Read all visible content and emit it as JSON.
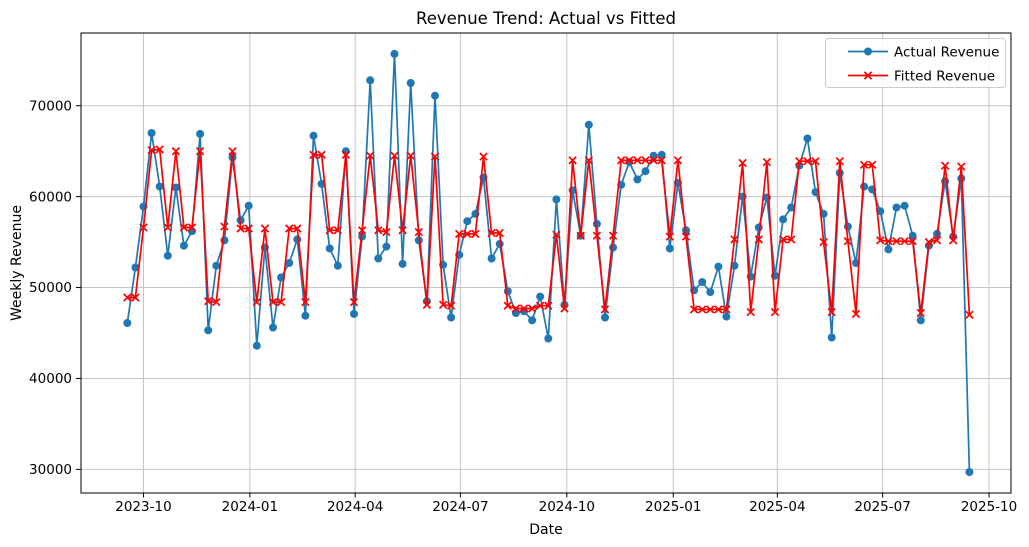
{
  "chart_data": {
    "type": "line",
    "title": "Revenue Trend: Actual vs Fitted",
    "xlabel": "Date",
    "ylabel": "Weekly Revenue",
    "grid": true,
    "legend_position": "upper right",
    "background": "#ffffff",
    "grid_color": "#c6c6c6",
    "spine_color": "#000000",
    "ylim": [
      27400,
      78000
    ],
    "xlim": [
      "2023-08-08",
      "2025-10-20"
    ],
    "y_ticks": [
      30000,
      40000,
      50000,
      60000,
      70000
    ],
    "x_ticks": [
      {
        "date": "2023-10-01",
        "label": "2023-10"
      },
      {
        "date": "2024-01-01",
        "label": "2024-01"
      },
      {
        "date": "2024-04-01",
        "label": "2024-04"
      },
      {
        "date": "2024-07-01",
        "label": "2024-07"
      },
      {
        "date": "2024-10-01",
        "label": "2024-10"
      },
      {
        "date": "2025-01-01",
        "label": "2025-01"
      },
      {
        "date": "2025-04-01",
        "label": "2025-04"
      },
      {
        "date": "2025-07-01",
        "label": "2025-07"
      },
      {
        "date": "2025-10-01",
        "label": "2025-10"
      }
    ],
    "x": [
      "2023-09-17",
      "2023-09-24",
      "2023-10-01",
      "2023-10-08",
      "2023-10-15",
      "2023-10-22",
      "2023-10-29",
      "2023-11-05",
      "2023-11-12",
      "2023-11-19",
      "2023-11-26",
      "2023-12-03",
      "2023-12-10",
      "2023-12-17",
      "2023-12-24",
      "2023-12-31",
      "2024-01-07",
      "2024-01-14",
      "2024-01-21",
      "2024-01-28",
      "2024-02-04",
      "2024-02-11",
      "2024-02-18",
      "2024-02-25",
      "2024-03-03",
      "2024-03-10",
      "2024-03-17",
      "2024-03-24",
      "2024-03-31",
      "2024-04-07",
      "2024-04-14",
      "2024-04-21",
      "2024-04-28",
      "2024-05-05",
      "2024-05-12",
      "2024-05-19",
      "2024-05-26",
      "2024-06-02",
      "2024-06-09",
      "2024-06-16",
      "2024-06-23",
      "2024-06-30",
      "2024-07-07",
      "2024-07-14",
      "2024-07-21",
      "2024-07-28",
      "2024-08-04",
      "2024-08-11",
      "2024-08-18",
      "2024-08-25",
      "2024-09-01",
      "2024-09-08",
      "2024-09-15",
      "2024-09-22",
      "2024-09-29",
      "2024-10-06",
      "2024-10-13",
      "2024-10-20",
      "2024-10-27",
      "2024-11-03",
      "2024-11-10",
      "2024-11-17",
      "2024-11-24",
      "2024-12-01",
      "2024-12-08",
      "2024-12-15",
      "2024-12-22",
      "2024-12-29",
      "2025-01-05",
      "2025-01-12",
      "2025-01-19",
      "2025-01-26",
      "2025-02-02",
      "2025-02-09",
      "2025-02-16",
      "2025-02-23",
      "2025-03-02",
      "2025-03-09",
      "2025-03-16",
      "2025-03-23",
      "2025-03-30",
      "2025-04-06",
      "2025-04-13",
      "2025-04-20",
      "2025-04-27",
      "2025-05-04",
      "2025-05-11",
      "2025-05-18",
      "2025-05-25",
      "2025-06-01",
      "2025-06-08",
      "2025-06-15",
      "2025-06-22",
      "2025-06-29",
      "2025-07-06",
      "2025-07-13",
      "2025-07-20",
      "2025-07-27",
      "2025-08-03",
      "2025-08-10",
      "2025-08-17",
      "2025-08-24",
      "2025-08-31",
      "2025-09-07",
      "2025-09-14"
    ],
    "series": [
      {
        "name": "Actual Revenue",
        "color": "#1f77b4",
        "marker": "circle",
        "values": [
          46100,
          52200,
          58900,
          67000,
          61100,
          53500,
          61000,
          54600,
          56200,
          66900,
          45300,
          52400,
          55200,
          64300,
          57400,
          59000,
          43600,
          54400,
          45600,
          51100,
          52700,
          55300,
          46900,
          66700,
          61400,
          54300,
          52400,
          65000,
          47100,
          55600,
          72800,
          53200,
          54500,
          75700,
          52600,
          72500,
          55200,
          48500,
          71100,
          52500,
          46700,
          53600,
          57300,
          58100,
          62100,
          53200,
          54800,
          49600,
          47200,
          47400,
          46400,
          49000,
          44400,
          59700,
          48100,
          60700,
          55700,
          67900,
          57000,
          46700,
          54400,
          61300,
          63800,
          61900,
          62800,
          64500,
          64600,
          54300,
          61500,
          56300,
          49700,
          50600,
          49500,
          52300,
          46800,
          52400,
          60000,
          51200,
          56600,
          59900,
          51300,
          57500,
          58800,
          63400,
          66400,
          60500,
          58100,
          44500,
          62600,
          56700,
          52700,
          61100,
          60800,
          58400,
          54200,
          58800,
          59000,
          55700,
          46400,
          54600,
          55900,
          61700,
          55600,
          62000,
          29700
        ]
      },
      {
        "name": "Fitted Revenue",
        "color": "#ff0000",
        "marker": "x",
        "values": [
          48900,
          48900,
          56600,
          65100,
          65200,
          56600,
          65000,
          56600,
          56600,
          65000,
          48500,
          48400,
          56700,
          65000,
          56500,
          56500,
          48400,
          56500,
          48400,
          48400,
          56500,
          56500,
          48400,
          64600,
          64600,
          56300,
          56300,
          64600,
          48400,
          56300,
          64500,
          56300,
          56100,
          64500,
          56300,
          64500,
          56100,
          48100,
          64400,
          48100,
          48000,
          55900,
          55900,
          55900,
          64400,
          56000,
          56000,
          48000,
          47700,
          47700,
          47700,
          48000,
          48000,
          55800,
          47700,
          64000,
          55700,
          64000,
          55700,
          47600,
          55700,
          64000,
          64000,
          64000,
          64000,
          64000,
          64000,
          55600,
          64000,
          55600,
          47600,
          47600,
          47600,
          47600,
          47600,
          55300,
          63700,
          47300,
          55300,
          63800,
          47300,
          55300,
          55300,
          63900,
          63900,
          63900,
          55000,
          47300,
          63900,
          55100,
          47100,
          63500,
          63500,
          55200,
          55100,
          55100,
          55100,
          55100,
          47200,
          55000,
          55200,
          63400,
          55200,
          63300,
          47000
        ]
      }
    ]
  }
}
